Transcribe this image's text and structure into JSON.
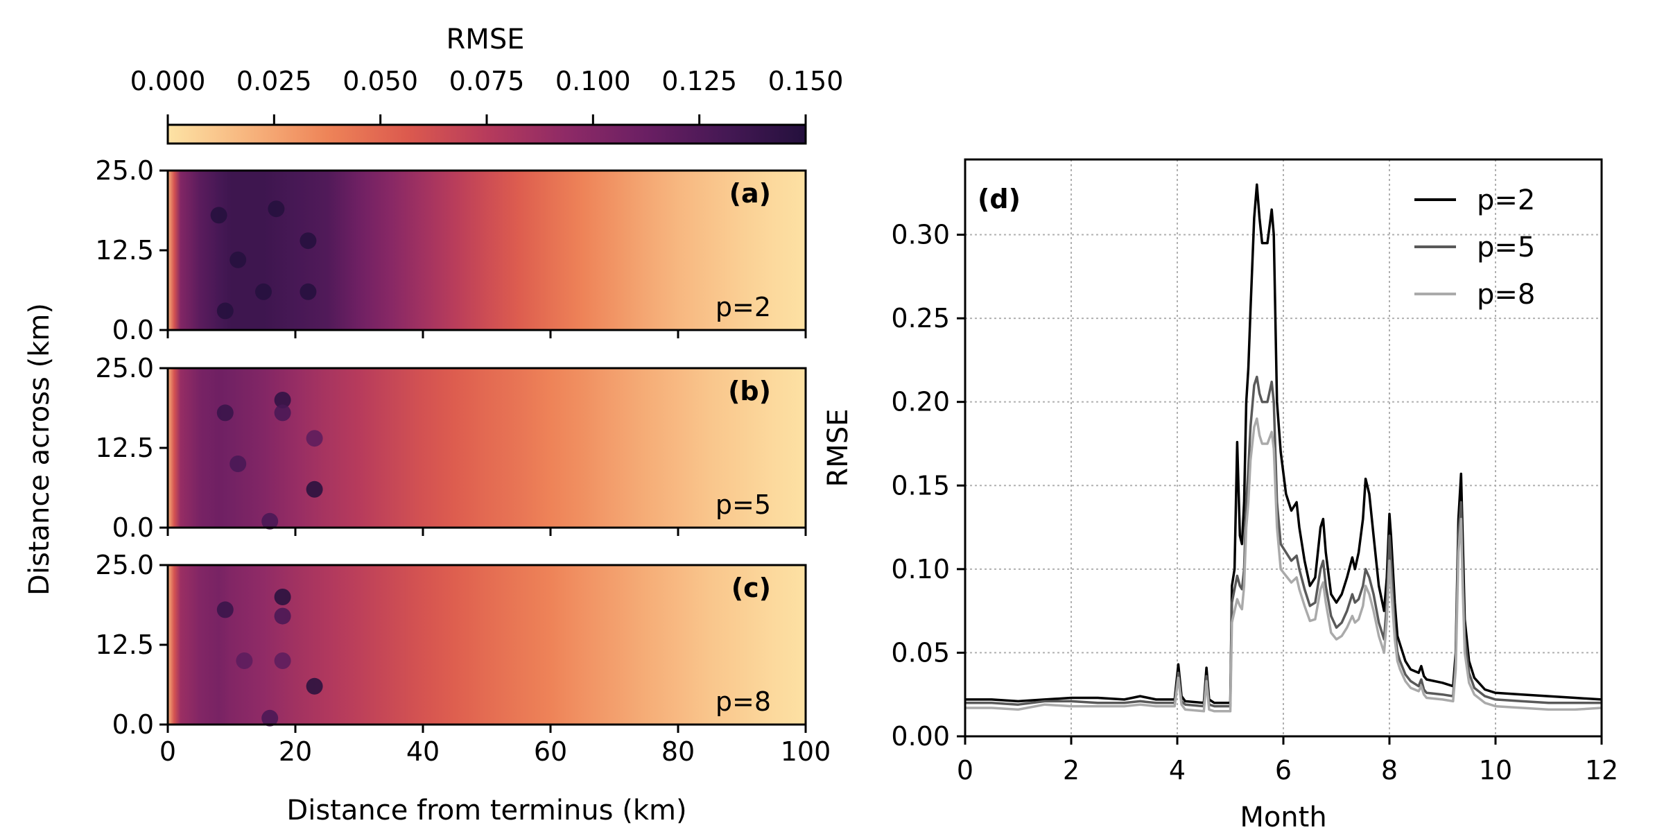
{
  "colorbar": {
    "label": "RMSE",
    "ticks": [
      "0.000",
      "0.025",
      "0.050",
      "0.075",
      "0.100",
      "0.125",
      "0.150"
    ],
    "range": [
      0,
      0.15
    ],
    "colormap": "magma_r",
    "stops": [
      "#fde3a5",
      "#f7b57e",
      "#ee8458",
      "#dc5a4e",
      "#b73b5c",
      "#8e2a66",
      "#6a1f63",
      "#451854",
      "#24103d"
    ]
  },
  "panels_left": {
    "ylabel": "Distance across (km)",
    "xlabel": "Distance from terminus (km)",
    "yticks": [
      "0.0",
      "12.5",
      "25.0"
    ],
    "xticks": [
      "0",
      "20",
      "40",
      "60",
      "80",
      "100"
    ],
    "panels": [
      {
        "tag": "(a)",
        "label": "p=2"
      },
      {
        "tag": "(b)",
        "label": "p=5"
      },
      {
        "tag": "(c)",
        "label": "p=8"
      }
    ]
  },
  "chart_data": [
    {
      "type": "heatmap",
      "panel": "(a)",
      "series_label": "p=2",
      "xlabel": "Distance from terminus (km)",
      "ylabel": "Distance across (km)",
      "xlim": [
        0,
        100
      ],
      "ylim": [
        0,
        25
      ],
      "colorbar_label": "RMSE",
      "clim": [
        0,
        0.15
      ],
      "profile": {
        "x": [
          0,
          1,
          2,
          5,
          8,
          10,
          15,
          20,
          25,
          30,
          35,
          40,
          45,
          50,
          55,
          60,
          65,
          70,
          75,
          80,
          85,
          90,
          95,
          100
        ],
        "rmse": [
          0.02,
          0.06,
          0.1,
          0.12,
          0.13,
          0.135,
          0.135,
          0.13,
          0.125,
          0.11,
          0.097,
          0.085,
          0.074,
          0.064,
          0.055,
          0.046,
          0.038,
          0.031,
          0.024,
          0.018,
          0.013,
          0.008,
          0.004,
          0.001
        ]
      },
      "hotspots": [
        {
          "x": 8,
          "y": 18,
          "rmse": 0.155
        },
        {
          "x": 17,
          "y": 19,
          "rmse": 0.15
        },
        {
          "x": 11,
          "y": 11,
          "rmse": 0.15
        },
        {
          "x": 15,
          "y": 6,
          "rmse": 0.15
        },
        {
          "x": 22,
          "y": 14,
          "rmse": 0.15
        },
        {
          "x": 22,
          "y": 6,
          "rmse": 0.15
        },
        {
          "x": 9,
          "y": 3,
          "rmse": 0.15
        }
      ]
    },
    {
      "type": "heatmap",
      "panel": "(b)",
      "series_label": "p=5",
      "xlabel": "Distance from terminus (km)",
      "ylabel": "Distance across (km)",
      "xlim": [
        0,
        100
      ],
      "ylim": [
        0,
        25
      ],
      "colorbar_label": "RMSE",
      "clim": [
        0,
        0.15
      ],
      "profile": {
        "x": [
          0,
          1,
          2,
          5,
          8,
          10,
          15,
          20,
          25,
          30,
          35,
          40,
          45,
          50,
          55,
          60,
          65,
          70,
          75,
          80,
          85,
          90,
          95,
          100
        ],
        "rmse": [
          0.02,
          0.06,
          0.09,
          0.105,
          0.11,
          0.108,
          0.1,
          0.09,
          0.082,
          0.075,
          0.068,
          0.061,
          0.055,
          0.049,
          0.044,
          0.038,
          0.033,
          0.027,
          0.022,
          0.017,
          0.012,
          0.008,
          0.004,
          0.001
        ]
      },
      "hotspots": [
        {
          "x": 9,
          "y": 18,
          "rmse": 0.14
        },
        {
          "x": 18,
          "y": 20,
          "rmse": 0.145
        },
        {
          "x": 18,
          "y": 18,
          "rmse": 0.13
        },
        {
          "x": 11,
          "y": 10,
          "rmse": 0.13
        },
        {
          "x": 16,
          "y": 1,
          "rmse": 0.13
        },
        {
          "x": 23,
          "y": 6,
          "rmse": 0.15
        },
        {
          "x": 23,
          "y": 14,
          "rmse": 0.12
        }
      ]
    },
    {
      "type": "heatmap",
      "panel": "(c)",
      "series_label": "p=8",
      "xlabel": "Distance from terminus (km)",
      "ylabel": "Distance across (km)",
      "xlim": [
        0,
        100
      ],
      "ylim": [
        0,
        25
      ],
      "colorbar_label": "RMSE",
      "clim": [
        0,
        0.15
      ],
      "profile": {
        "x": [
          0,
          1,
          2,
          5,
          8,
          10,
          15,
          20,
          25,
          30,
          35,
          40,
          45,
          50,
          55,
          60,
          65,
          70,
          75,
          80,
          85,
          90,
          95,
          100
        ],
        "rmse": [
          0.02,
          0.06,
          0.088,
          0.1,
          0.105,
          0.1,
          0.093,
          0.085,
          0.078,
          0.072,
          0.066,
          0.06,
          0.054,
          0.048,
          0.043,
          0.038,
          0.032,
          0.027,
          0.022,
          0.017,
          0.012,
          0.008,
          0.004,
          0.001
        ]
      },
      "hotspots": [
        {
          "x": 9,
          "y": 18,
          "rmse": 0.14
        },
        {
          "x": 18,
          "y": 20,
          "rmse": 0.15
        },
        {
          "x": 18,
          "y": 17,
          "rmse": 0.13
        },
        {
          "x": 12,
          "y": 10,
          "rmse": 0.12
        },
        {
          "x": 18,
          "y": 10,
          "rmse": 0.12
        },
        {
          "x": 23,
          "y": 6,
          "rmse": 0.15
        },
        {
          "x": 16,
          "y": 1,
          "rmse": 0.13
        }
      ]
    },
    {
      "type": "line",
      "panel": "(d)",
      "xlabel": "Month",
      "ylabel": "RMSE",
      "xlim": [
        0,
        12
      ],
      "ylim": [
        0,
        0.345
      ],
      "xticks": [
        "0",
        "2",
        "4",
        "6",
        "8",
        "10",
        "12"
      ],
      "yticks": [
        "0.00",
        "0.05",
        "0.10",
        "0.15",
        "0.20",
        "0.25",
        "0.30"
      ],
      "grid": true,
      "legend_position": "top-right",
      "series": [
        {
          "name": "p=2",
          "color": "#000000",
          "x": [
            0,
            0.5,
            1,
            1.5,
            2,
            2.5,
            3,
            3.3,
            3.6,
            3.95,
            4.02,
            4.08,
            4.15,
            4.5,
            4.55,
            4.6,
            4.7,
            5.0,
            5.03,
            5.08,
            5.13,
            5.18,
            5.22,
            5.26,
            5.3,
            5.34,
            5.38,
            5.45,
            5.5,
            5.55,
            5.6,
            5.7,
            5.78,
            5.82,
            5.88,
            5.95,
            6.05,
            6.15,
            6.25,
            6.3,
            6.4,
            6.5,
            6.6,
            6.7,
            6.75,
            6.8,
            6.9,
            7.0,
            7.1,
            7.2,
            7.3,
            7.35,
            7.42,
            7.5,
            7.55,
            7.62,
            7.7,
            7.8,
            7.9,
            7.95,
            8.0,
            8.03,
            8.1,
            8.15,
            8.2,
            8.3,
            8.4,
            8.55,
            8.6,
            8.65,
            8.7,
            9.0,
            9.2,
            9.25,
            9.3,
            9.35,
            9.38,
            9.42,
            9.5,
            9.6,
            9.8,
            10.0,
            10.5,
            11,
            11.5,
            12
          ],
          "y": [
            0.022,
            0.022,
            0.021,
            0.022,
            0.023,
            0.023,
            0.022,
            0.024,
            0.022,
            0.022,
            0.043,
            0.024,
            0.021,
            0.02,
            0.041,
            0.022,
            0.02,
            0.02,
            0.09,
            0.1,
            0.176,
            0.12,
            0.115,
            0.14,
            0.2,
            0.22,
            0.255,
            0.31,
            0.33,
            0.31,
            0.295,
            0.295,
            0.315,
            0.3,
            0.2,
            0.17,
            0.145,
            0.135,
            0.14,
            0.125,
            0.105,
            0.09,
            0.095,
            0.125,
            0.13,
            0.11,
            0.085,
            0.08,
            0.085,
            0.095,
            0.107,
            0.1,
            0.11,
            0.13,
            0.154,
            0.145,
            0.12,
            0.09,
            0.075,
            0.095,
            0.133,
            0.12,
            0.08,
            0.06,
            0.055,
            0.045,
            0.04,
            0.038,
            0.042,
            0.036,
            0.034,
            0.032,
            0.03,
            0.05,
            0.13,
            0.157,
            0.12,
            0.07,
            0.045,
            0.035,
            0.028,
            0.026,
            0.025,
            0.024,
            0.023,
            0.022
          ]
        },
        {
          "name": "p=5",
          "color": "#595959",
          "x": [
            0,
            0.5,
            1,
            1.5,
            2,
            2.5,
            3,
            3.3,
            3.6,
            3.95,
            4.02,
            4.08,
            4.15,
            4.5,
            4.55,
            4.6,
            4.7,
            5.0,
            5.03,
            5.08,
            5.13,
            5.18,
            5.22,
            5.26,
            5.3,
            5.34,
            5.38,
            5.45,
            5.5,
            5.55,
            5.6,
            5.7,
            5.78,
            5.82,
            5.88,
            5.95,
            6.05,
            6.15,
            6.25,
            6.3,
            6.4,
            6.5,
            6.6,
            6.7,
            6.75,
            6.8,
            6.9,
            7.0,
            7.1,
            7.2,
            7.3,
            7.35,
            7.42,
            7.5,
            7.55,
            7.62,
            7.7,
            7.8,
            7.9,
            7.95,
            8.0,
            8.03,
            8.1,
            8.15,
            8.2,
            8.3,
            8.4,
            8.55,
            8.6,
            8.65,
            8.7,
            9.0,
            9.2,
            9.25,
            9.3,
            9.35,
            9.38,
            9.42,
            9.5,
            9.6,
            9.8,
            10.0,
            10.5,
            11,
            11.5,
            12
          ],
          "y": [
            0.02,
            0.02,
            0.019,
            0.021,
            0.021,
            0.02,
            0.02,
            0.021,
            0.02,
            0.02,
            0.038,
            0.021,
            0.019,
            0.018,
            0.036,
            0.019,
            0.018,
            0.018,
            0.08,
            0.088,
            0.096,
            0.09,
            0.088,
            0.1,
            0.14,
            0.16,
            0.185,
            0.21,
            0.215,
            0.205,
            0.2,
            0.2,
            0.212,
            0.2,
            0.14,
            0.115,
            0.11,
            0.105,
            0.108,
            0.1,
            0.088,
            0.078,
            0.08,
            0.1,
            0.105,
            0.09,
            0.072,
            0.065,
            0.068,
            0.075,
            0.085,
            0.08,
            0.082,
            0.09,
            0.1,
            0.095,
            0.085,
            0.068,
            0.058,
            0.08,
            0.12,
            0.105,
            0.065,
            0.05,
            0.045,
            0.037,
            0.033,
            0.03,
            0.034,
            0.028,
            0.026,
            0.025,
            0.024,
            0.045,
            0.12,
            0.14,
            0.1,
            0.06,
            0.038,
            0.029,
            0.024,
            0.022,
            0.021,
            0.02,
            0.02,
            0.02
          ]
        },
        {
          "name": "p=8",
          "color": "#aaaaaa",
          "x": [
            0,
            0.5,
            1,
            1.5,
            2,
            2.5,
            3,
            3.3,
            3.6,
            3.95,
            4.02,
            4.08,
            4.15,
            4.5,
            4.55,
            4.6,
            4.7,
            5.0,
            5.03,
            5.08,
            5.13,
            5.18,
            5.22,
            5.26,
            5.3,
            5.34,
            5.38,
            5.45,
            5.5,
            5.55,
            5.6,
            5.7,
            5.78,
            5.82,
            5.88,
            5.95,
            6.05,
            6.15,
            6.25,
            6.3,
            6.4,
            6.5,
            6.6,
            6.7,
            6.75,
            6.8,
            6.9,
            7.0,
            7.1,
            7.2,
            7.3,
            7.35,
            7.42,
            7.5,
            7.55,
            7.62,
            7.7,
            7.8,
            7.9,
            7.95,
            8.0,
            8.03,
            8.1,
            8.15,
            8.2,
            8.3,
            8.4,
            8.55,
            8.6,
            8.65,
            8.7,
            9.0,
            9.2,
            9.25,
            9.3,
            9.35,
            9.38,
            9.42,
            9.5,
            9.6,
            9.8,
            10.0,
            10.5,
            11,
            11.5,
            12
          ],
          "y": [
            0.017,
            0.017,
            0.016,
            0.019,
            0.018,
            0.018,
            0.018,
            0.019,
            0.018,
            0.018,
            0.035,
            0.019,
            0.016,
            0.015,
            0.033,
            0.016,
            0.015,
            0.015,
            0.068,
            0.075,
            0.082,
            0.078,
            0.076,
            0.09,
            0.125,
            0.14,
            0.165,
            0.185,
            0.19,
            0.18,
            0.175,
            0.175,
            0.182,
            0.172,
            0.125,
            0.1,
            0.096,
            0.092,
            0.095,
            0.088,
            0.078,
            0.069,
            0.07,
            0.088,
            0.092,
            0.08,
            0.062,
            0.058,
            0.06,
            0.065,
            0.072,
            0.068,
            0.07,
            0.078,
            0.09,
            0.085,
            0.075,
            0.06,
            0.05,
            0.07,
            0.105,
            0.09,
            0.058,
            0.045,
            0.04,
            0.033,
            0.029,
            0.027,
            0.03,
            0.025,
            0.023,
            0.022,
            0.021,
            0.04,
            0.11,
            0.13,
            0.09,
            0.05,
            0.032,
            0.025,
            0.02,
            0.018,
            0.017,
            0.016,
            0.016,
            0.017
          ]
        }
      ],
      "tag": "(d)"
    }
  ]
}
